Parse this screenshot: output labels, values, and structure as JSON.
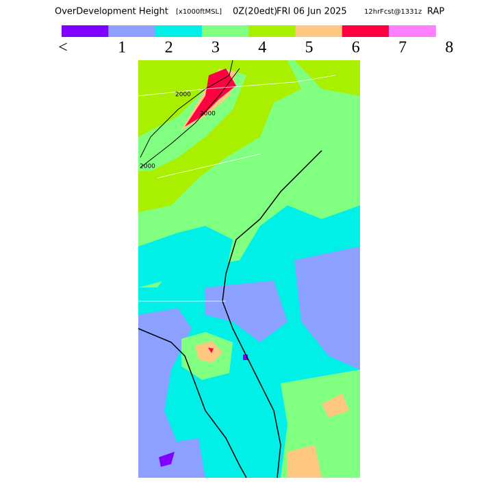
{
  "header": {
    "title_parts": [
      "OverDevelopment Height",
      "[x1000ftMSL]",
      "0Z(20edt)",
      "FRI 06 Jun 2025",
      "12hrFcst@1331z",
      "RAP"
    ]
  },
  "colorbar": {
    "colors": [
      "#8000ff",
      "#8ca0ff",
      "#00f0e8",
      "#80ff80",
      "#a8f000",
      "#ffc880",
      "#ff0040",
      "#ff80ff"
    ],
    "labels": [
      "<",
      "1",
      "2",
      "3",
      "4",
      "5",
      "6",
      "7",
      "8"
    ]
  },
  "map": {
    "contour_labels": [
      "2000",
      "2000",
      "2000"
    ]
  }
}
